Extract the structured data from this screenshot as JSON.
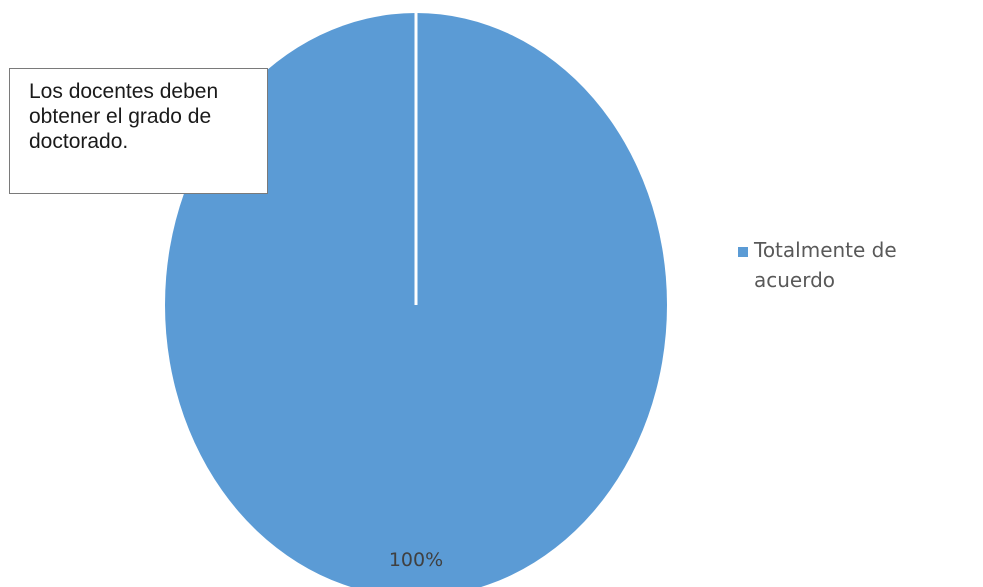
{
  "chart_data": {
    "type": "pie",
    "title": "Los docentes deben obtener el grado de doctorado.",
    "categories": [
      "Totalmente de acuerdo"
    ],
    "values": [
      100
    ],
    "data_labels": [
      "100%"
    ],
    "colors": [
      "#5b9bd5"
    ],
    "legend_position": "right"
  }
}
